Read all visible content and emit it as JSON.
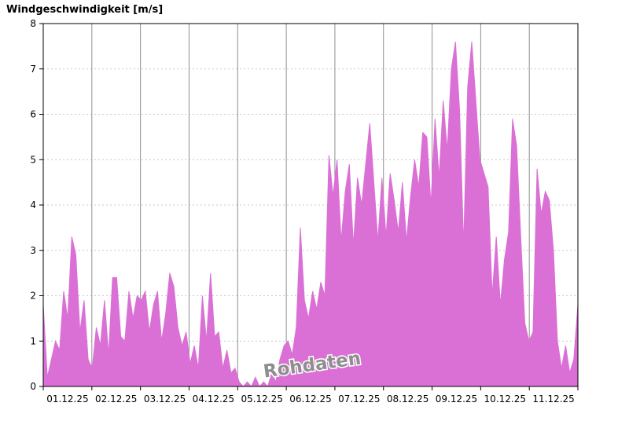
{
  "chart_data": {
    "type": "area",
    "title": "Windgeschwindigkeit [m/s]",
    "ylabel": "Windgeschwindigkeit [m/s]",
    "xlabel": "",
    "watermark": "Rohdaten",
    "fill_color": "#da70d6",
    "gridline_color_h": "#c9c9c9",
    "gridline_color_v": "#8f8f8f",
    "axis_color": "#000000",
    "ylim": [
      0,
      8
    ],
    "y_ticks": [
      0,
      1,
      2,
      3,
      4,
      5,
      6,
      7,
      8
    ],
    "x_tick_labels": [
      "01.12.25",
      "02.12.25",
      "03.12.25",
      "04.12.25",
      "05.12.25",
      "06.12.25",
      "07.12.25",
      "08.12.25",
      "09.12.25",
      "10.12.25",
      "11.12.25"
    ],
    "samples_per_day": 12,
    "values": [
      1.8,
      0.2,
      0.6,
      1.0,
      0.8,
      2.1,
      1.5,
      3.3,
      2.9,
      1.2,
      1.9,
      0.6,
      0.4,
      1.3,
      0.9,
      1.9,
      0.7,
      2.4,
      2.4,
      1.1,
      1.0,
      2.1,
      1.5,
      2.0,
      1.9,
      2.1,
      1.2,
      1.8,
      2.1,
      1.0,
      1.6,
      2.5,
      2.2,
      1.3,
      0.9,
      1.2,
      0.5,
      0.9,
      0.4,
      2.0,
      1.0,
      2.5,
      1.1,
      1.2,
      0.4,
      0.8,
      0.3,
      0.4,
      0.1,
      0.0,
      0.1,
      0.0,
      0.2,
      0.0,
      0.1,
      0.0,
      0.3,
      0.1,
      0.6,
      0.9,
      1.0,
      0.7,
      1.3,
      3.5,
      1.9,
      1.5,
      2.1,
      1.7,
      2.3,
      2.0,
      5.1,
      4.2,
      5.0,
      3.2,
      4.3,
      4.9,
      3.1,
      4.6,
      4.0,
      4.9,
      5.8,
      4.5,
      3.2,
      4.6,
      3.3,
      4.7,
      4.1,
      3.4,
      4.5,
      3.2,
      4.2,
      5.0,
      4.4,
      5.6,
      5.5,
      4.0,
      5.9,
      4.6,
      6.3,
      5.2,
      7.0,
      7.6,
      6.1,
      3.1,
      6.6,
      7.6,
      6.3,
      5.0,
      4.7,
      4.4,
      2.0,
      3.3,
      1.8,
      2.8,
      3.4,
      5.9,
      5.3,
      3.3,
      1.4,
      1.0,
      1.2,
      4.8,
      3.8,
      4.3,
      4.1,
      3.0,
      1.0,
      0.4,
      0.9,
      0.3,
      0.6,
      1.8
    ]
  }
}
